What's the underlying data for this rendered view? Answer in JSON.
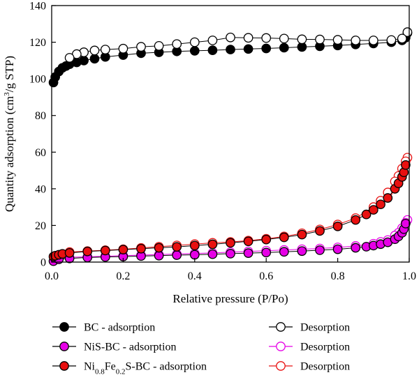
{
  "chart_data": {
    "type": "scatter",
    "xlabel": "Relative pressure (P/Po)",
    "ylabel": {
      "before_sup": "Quantity adsorption (cm",
      "sup": "3",
      "after_sup": "/g STP)"
    },
    "xlim": [
      0.0,
      1.0
    ],
    "ylim": [
      0,
      140
    ],
    "xticks": [
      0.0,
      0.2,
      0.4,
      0.6,
      0.8,
      1.0
    ],
    "xtick_labels": [
      "0.0",
      "0.2",
      "0.4",
      "0.6",
      "0.8",
      "1.0"
    ],
    "yticks": [
      0,
      20,
      40,
      60,
      80,
      100,
      120,
      140
    ],
    "ytick_labels": [
      "0",
      "20",
      "40",
      "60",
      "80",
      "100",
      "120",
      "140"
    ],
    "grid": false,
    "legend_position": "bottom",
    "legend": [
      {
        "label_parts": [
          {
            "t": "BC - adsorption"
          }
        ]
      },
      {
        "label_parts": [
          {
            "t": "Desorption"
          }
        ]
      },
      {
        "label_parts": [
          {
            "t": "NiS-BC - adsorption"
          }
        ]
      },
      {
        "label_parts": [
          {
            "t": "Desorption"
          }
        ]
      },
      {
        "label_parts": [
          {
            "t": "Ni"
          },
          {
            "t": "0.8",
            "sub": true
          },
          {
            "t": "Fe"
          },
          {
            "t": "0.2",
            "sub": true
          },
          {
            "t": "S-BC - adsorption"
          }
        ]
      },
      {
        "label_parts": [
          {
            "t": "Desorption"
          }
        ]
      }
    ],
    "series": [
      {
        "kind": "adsorption",
        "color": "#000000",
        "filled": true,
        "x": [
          0.005,
          0.01,
          0.02,
          0.03,
          0.04,
          0.05,
          0.07,
          0.09,
          0.12,
          0.15,
          0.2,
          0.25,
          0.3,
          0.35,
          0.4,
          0.45,
          0.5,
          0.55,
          0.6,
          0.65,
          0.7,
          0.75,
          0.8,
          0.85,
          0.9,
          0.95,
          0.98,
          0.99,
          0.995
        ],
        "y": [
          98,
          101,
          104,
          106,
          107,
          108,
          109,
          110,
          111,
          112,
          113,
          114,
          114.5,
          115,
          115.3,
          115.6,
          116,
          116.3,
          116.6,
          117,
          117.4,
          117.8,
          118.2,
          118.8,
          119.3,
          120,
          121,
          122.5,
          125
        ]
      },
      {
        "kind": "desorption",
        "color": "#000000",
        "filled": false,
        "x": [
          0.995,
          0.98,
          0.95,
          0.9,
          0.85,
          0.8,
          0.75,
          0.7,
          0.65,
          0.6,
          0.55,
          0.5,
          0.45,
          0.4,
          0.35,
          0.3,
          0.25,
          0.2,
          0.15,
          0.12,
          0.09,
          0.07,
          0.05
        ],
        "y": [
          125.5,
          122,
          121.2,
          121,
          121,
          121.3,
          121.5,
          121.6,
          122,
          122.3,
          122.4,
          122.6,
          121,
          120,
          119,
          118,
          117.5,
          116.5,
          116,
          115.5,
          114.5,
          113.5,
          111.5
        ]
      },
      {
        "kind": "adsorption",
        "color": "#e600e6",
        "filled": true,
        "x": [
          0.005,
          0.02,
          0.05,
          0.1,
          0.15,
          0.2,
          0.25,
          0.3,
          0.35,
          0.4,
          0.45,
          0.5,
          0.55,
          0.6,
          0.65,
          0.7,
          0.75,
          0.8,
          0.85,
          0.88,
          0.9,
          0.92,
          0.94,
          0.96,
          0.97,
          0.98,
          0.985,
          0.99
        ],
        "y": [
          0.5,
          1.5,
          2,
          2.5,
          2.8,
          3,
          3.3,
          3.5,
          3.8,
          4,
          4.3,
          4.6,
          4.9,
          5.2,
          5.6,
          6,
          6.5,
          7,
          7.8,
          8.4,
          9,
          9.8,
          10.8,
          12.5,
          14,
          16,
          18,
          21
        ]
      },
      {
        "kind": "desorption",
        "color": "#e600e6",
        "filled": false,
        "x": [
          0.995,
          0.99,
          0.98,
          0.97,
          0.96,
          0.94,
          0.92,
          0.9,
          0.85,
          0.8,
          0.75,
          0.7,
          0.65,
          0.6,
          0.55,
          0.5,
          0.45,
          0.4,
          0.35,
          0.3,
          0.25,
          0.2,
          0.15,
          0.1,
          0.05
        ],
        "y": [
          23,
          21.5,
          18.5,
          16,
          14.5,
          12,
          11,
          10,
          8.8,
          8,
          7.4,
          7,
          6.6,
          6.2,
          5.8,
          5.4,
          5,
          4.7,
          4.4,
          4.1,
          3.8,
          3.5,
          3.2,
          2.9,
          2.6
        ]
      },
      {
        "kind": "adsorption",
        "color": "#e81010",
        "filled": true,
        "x": [
          0.005,
          0.01,
          0.02,
          0.03,
          0.05,
          0.1,
          0.15,
          0.2,
          0.25,
          0.3,
          0.35,
          0.4,
          0.45,
          0.5,
          0.55,
          0.6,
          0.65,
          0.7,
          0.75,
          0.8,
          0.85,
          0.88,
          0.9,
          0.92,
          0.94,
          0.96,
          0.97,
          0.98,
          0.985,
          0.99
        ],
        "y": [
          3,
          3.5,
          4,
          4.5,
          5,
          5.8,
          6.3,
          6.8,
          7.3,
          7.8,
          8.3,
          9,
          9.7,
          10.5,
          11.3,
          12.3,
          13.5,
          15,
          17,
          19.5,
          23,
          26,
          28.5,
          31.5,
          35,
          40,
          43,
          46.5,
          49,
          53
        ]
      },
      {
        "kind": "desorption",
        "color": "#e81010",
        "filled": false,
        "x": [
          0.995,
          0.99,
          0.98,
          0.97,
          0.96,
          0.94,
          0.92,
          0.9,
          0.85,
          0.8,
          0.75,
          0.7,
          0.65,
          0.6,
          0.55,
          0.5,
          0.45,
          0.4,
          0.35,
          0.3,
          0.25,
          0.2,
          0.15,
          0.1,
          0.05
        ],
        "y": [
          57,
          55,
          51,
          47,
          44,
          38,
          33.5,
          30,
          24,
          20.5,
          17.8,
          15.7,
          14,
          12.7,
          11.7,
          11,
          10.5,
          9.8,
          9.1,
          8.4,
          7.7,
          7,
          6.5,
          6,
          5.5
        ]
      }
    ]
  }
}
